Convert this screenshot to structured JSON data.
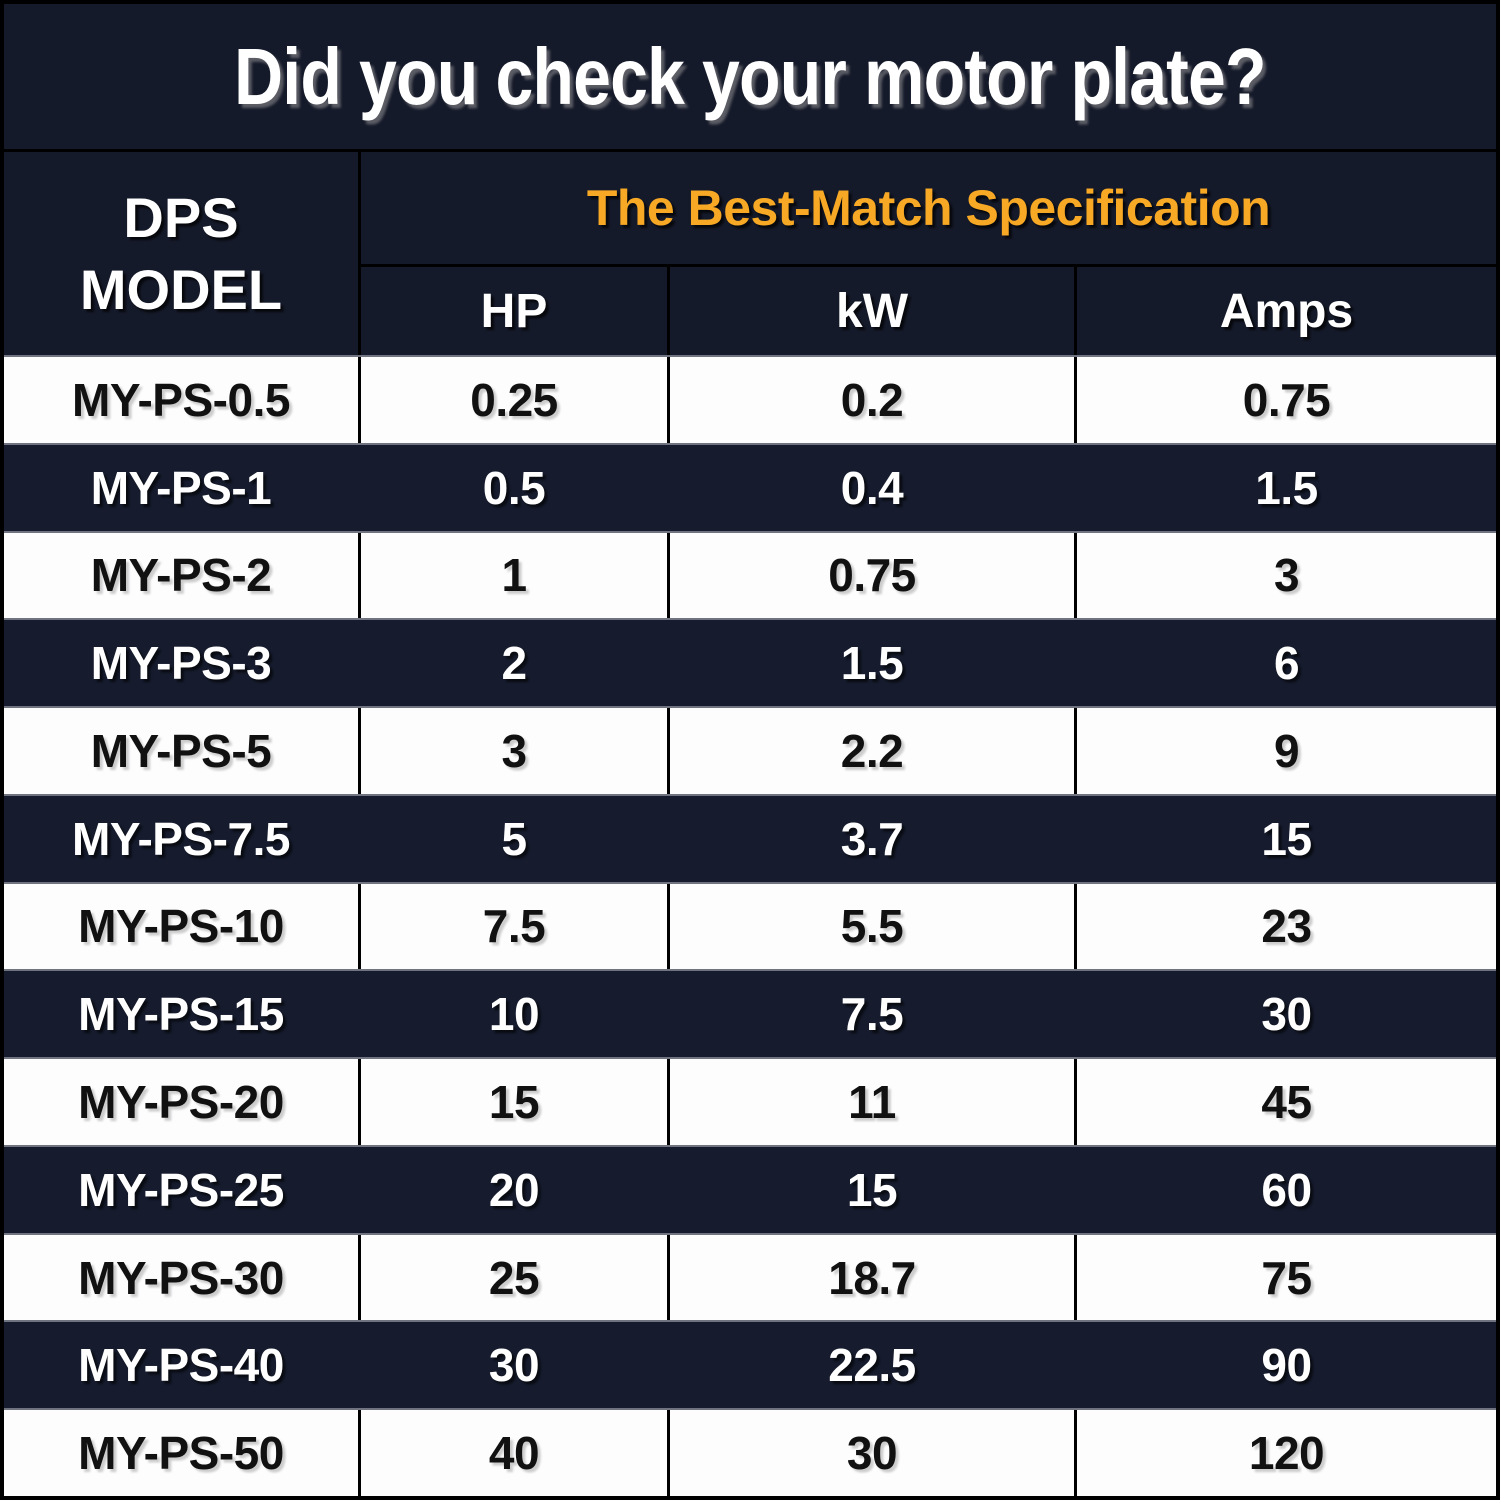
{
  "title": "Did you check your motor plate?",
  "table": {
    "model_header": {
      "line1": "DPS",
      "line2": "MODEL"
    },
    "spec_header": "The Best-Match Specification",
    "columns": [
      "HP",
      "kW",
      "Amps"
    ],
    "rows": [
      {
        "model": "MY-PS-0.5",
        "hp": "0.25",
        "kw": "0.2",
        "amps": "0.75"
      },
      {
        "model": "MY-PS-1",
        "hp": "0.5",
        "kw": "0.4",
        "amps": "1.5"
      },
      {
        "model": "MY-PS-2",
        "hp": "1",
        "kw": "0.75",
        "amps": "3"
      },
      {
        "model": "MY-PS-3",
        "hp": "2",
        "kw": "1.5",
        "amps": "6"
      },
      {
        "model": "MY-PS-5",
        "hp": "3",
        "kw": "2.2",
        "amps": "9"
      },
      {
        "model": "MY-PS-7.5",
        "hp": "5",
        "kw": "3.7",
        "amps": "15"
      },
      {
        "model": "MY-PS-10",
        "hp": "7.5",
        "kw": "5.5",
        "amps": "23"
      },
      {
        "model": "MY-PS-15",
        "hp": "10",
        "kw": "7.5",
        "amps": "30"
      },
      {
        "model": "MY-PS-20",
        "hp": "15",
        "kw": "11",
        "amps": "45"
      },
      {
        "model": "MY-PS-25",
        "hp": "20",
        "kw": "15",
        "amps": "60"
      },
      {
        "model": "MY-PS-30",
        "hp": "25",
        "kw": "18.7",
        "amps": "75"
      },
      {
        "model": "MY-PS-40",
        "hp": "30",
        "kw": "22.5",
        "amps": "90"
      },
      {
        "model": "MY-PS-50",
        "hp": "40",
        "kw": "30",
        "amps": "120"
      }
    ]
  },
  "colors": {
    "background": "#151A2A",
    "row_dark": "#161C2E",
    "row_light": "#FDFDFE",
    "accent_orange": "#F7A824",
    "text_dark": "#111111",
    "text_light": "#FFFFFF",
    "border_black": "#000000"
  }
}
